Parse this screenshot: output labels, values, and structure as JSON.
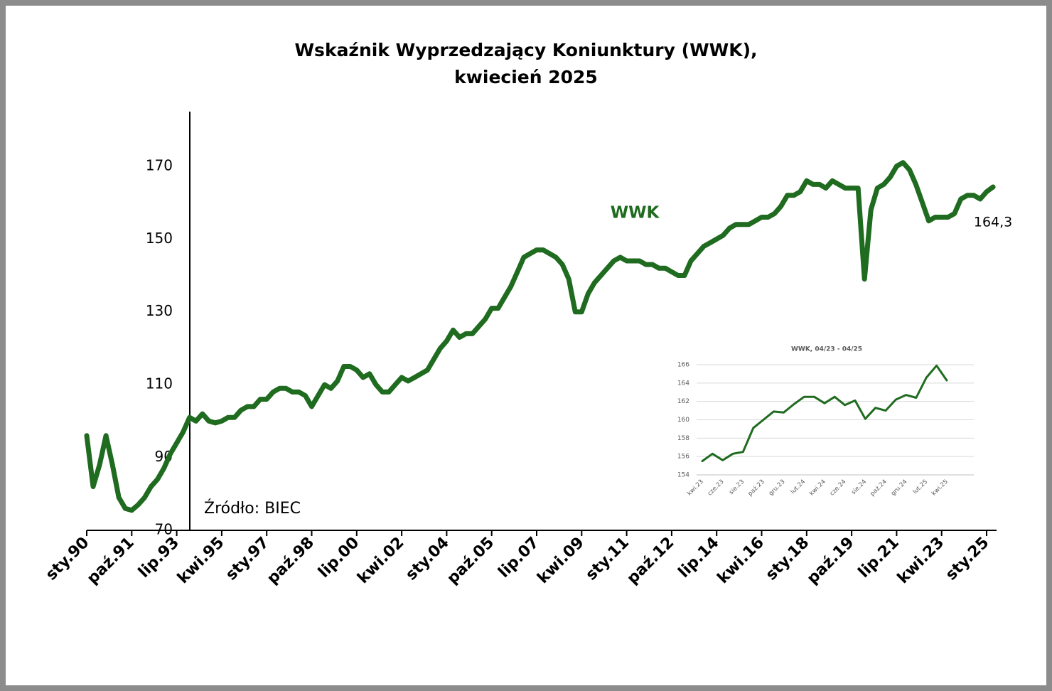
{
  "chart_data": [
    {
      "type": "line",
      "title": [
        "Wskaźnik Wyprzedzający Koniunktury (WWK),",
        "kwiecień 2025"
      ],
      "source": "Źródło: BIEC",
      "categories": [
        "sty.90",
        null,
        null,
        null,
        null,
        null,
        null,
        "paź.91",
        null,
        null,
        null,
        null,
        null,
        null,
        "lip.93",
        null,
        null,
        null,
        null,
        null,
        null,
        "kwi.95",
        null,
        null,
        null,
        null,
        null,
        null,
        "sty.97",
        null,
        null,
        null,
        null,
        null,
        null,
        "paź.98",
        null,
        null,
        null,
        null,
        null,
        null,
        "lip.00",
        null,
        null,
        null,
        null,
        null,
        null,
        "kwi.02",
        null,
        null,
        null,
        null,
        null,
        null,
        "sty.04",
        null,
        null,
        null,
        null,
        null,
        null,
        "paź.05",
        null,
        null,
        null,
        null,
        null,
        null,
        "lip.07",
        null,
        null,
        null,
        null,
        null,
        null,
        "kwi.09",
        null,
        null,
        null,
        null,
        null,
        null,
        "sty.11",
        null,
        null,
        null,
        null,
        null,
        null,
        "paź.12",
        null,
        null,
        null,
        null,
        null,
        null,
        "lip.14",
        null,
        null,
        null,
        null,
        null,
        null,
        "kwi.16",
        null,
        null,
        null,
        null,
        null,
        null,
        "sty.18",
        null,
        null,
        null,
        null,
        null,
        null,
        "paź.19",
        null,
        null,
        null,
        null,
        null,
        null,
        "lip.21",
        null,
        null,
        null,
        null,
        null,
        null,
        "kwi.23",
        null,
        null,
        null,
        null,
        null,
        null,
        "sty.25",
        null
      ],
      "series": [
        {
          "name": "WWK",
          "color": "#1f6b1f",
          "values": [
            96,
            82,
            88,
            96,
            88,
            79,
            76,
            75.5,
            77,
            79,
            82,
            84,
            87,
            91,
            94,
            97,
            101,
            100,
            102,
            100,
            99.5,
            100,
            101,
            101,
            103,
            104,
            104,
            106,
            106,
            108,
            109,
            109,
            108,
            108,
            107,
            104,
            107,
            110,
            109,
            111,
            115,
            115,
            114,
            112,
            113,
            110,
            108,
            108,
            110,
            112,
            111,
            112,
            113,
            114,
            117,
            120,
            122,
            125,
            123,
            124,
            124,
            126,
            128,
            131,
            131,
            134,
            137,
            141,
            145,
            146,
            147,
            147,
            146,
            145,
            143,
            139,
            130,
            130,
            135,
            138,
            140,
            142,
            144,
            145,
            144,
            144,
            144,
            143,
            143,
            142,
            142,
            141,
            140,
            140,
            144,
            146,
            148,
            149,
            150,
            151,
            153,
            154,
            154,
            154,
            155,
            156,
            156,
            157,
            159,
            162,
            162,
            163,
            166,
            165,
            165,
            164,
            166,
            165,
            164,
            164,
            164,
            139,
            158,
            164,
            165,
            167,
            170,
            171,
            169,
            165,
            160,
            155,
            156,
            156,
            156,
            157,
            161,
            162,
            162,
            161,
            163,
            164.3
          ],
          "value_labels": [
            null,
            null,
            null,
            null,
            null,
            null,
            null,
            null,
            null,
            null,
            null,
            null,
            null,
            null,
            null,
            null,
            null,
            null,
            null,
            null,
            null,
            null,
            null,
            null,
            null,
            null,
            null,
            null,
            null,
            null,
            null,
            null,
            null,
            null,
            null,
            null,
            null,
            null,
            null,
            null,
            null,
            null,
            null,
            null,
            null,
            null,
            null,
            null,
            null,
            null,
            null,
            null,
            null,
            null,
            null,
            null,
            null,
            null,
            null,
            null,
            null,
            null,
            null,
            null,
            null,
            null,
            null,
            null,
            null,
            null,
            null,
            null,
            null,
            null,
            null,
            null,
            null,
            null,
            null,
            null,
            null,
            null,
            null,
            null,
            null,
            null,
            null,
            null,
            null,
            null,
            null,
            null,
            null,
            null,
            null,
            null,
            null,
            null,
            null,
            null,
            null,
            null,
            null,
            null,
            null,
            null,
            null,
            null,
            null,
            null,
            null,
            null,
            null,
            null,
            null,
            null,
            null,
            null,
            null,
            null,
            null,
            null,
            null,
            null,
            null,
            null,
            null,
            null,
            null,
            null,
            null,
            null,
            null,
            null,
            null,
            null,
            null,
            null,
            null,
            null,
            null,
            "164,3"
          ]
        }
      ],
      "ylim": [
        70,
        185
      ],
      "yticks": [
        70,
        90,
        110,
        130,
        150,
        170
      ],
      "grid": false
    },
    {
      "type": "line",
      "title": "WWK, 04/23 - 04/25",
      "categories": [
        "kwi.23",
        null,
        "cze.23",
        null,
        "sie.23",
        null,
        "paź.23",
        null,
        "gru.23",
        null,
        "lut.24",
        null,
        "kwi.24",
        null,
        "cze.24",
        null,
        "sie.24",
        null,
        "paź.24",
        null,
        "gru.24",
        null,
        "lut.25",
        null,
        "kwi.25"
      ],
      "series": [
        {
          "name": "WWK",
          "color": "#1f6b1f",
          "values": [
            155.5,
            156.3,
            155.6,
            156.3,
            156.5,
            159.1,
            160.0,
            160.9,
            160.8,
            161.7,
            162.5,
            162.5,
            161.8,
            162.5,
            161.6,
            162.1,
            160.1,
            161.3,
            161.0,
            162.2,
            162.7,
            162.4,
            164.6,
            165.9,
            164.3
          ]
        }
      ],
      "ylim": [
        154,
        166
      ],
      "yticks": [
        154,
        156,
        158,
        160,
        162,
        164,
        166
      ],
      "grid": true
    }
  ]
}
